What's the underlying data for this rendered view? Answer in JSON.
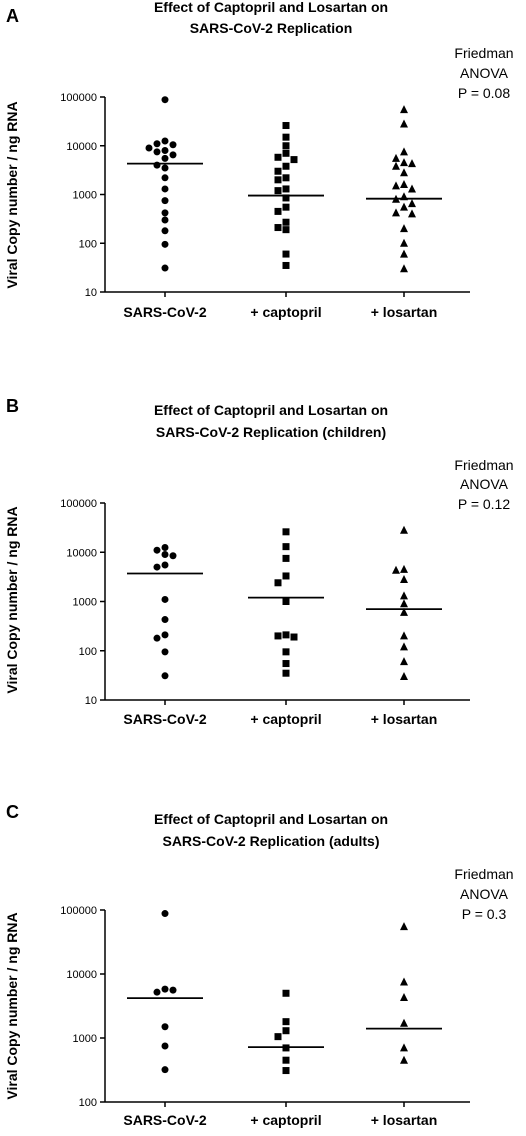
{
  "chart_data": [
    {
      "panel": "A",
      "type": "scatter",
      "title_lines": [
        "Effect of Captopril and Losartan on",
        "SARS-CoV-2 Replication"
      ],
      "stat_lines": [
        "Friedman",
        "ANOVA",
        "P = 0.08"
      ],
      "ylabel": "Viral Copy number / ng RNA",
      "yscale": "log",
      "ylim": [
        10,
        100000
      ],
      "yticks": [
        10,
        100,
        1000,
        10000,
        100000
      ],
      "ytick_labels": [
        "10",
        "100",
        "1000",
        "10000",
        "100000"
      ],
      "categories": [
        "SARS-CoV-2",
        "+ captopril",
        "+ losartan"
      ],
      "series": [
        {
          "markers": "circle",
          "median": 4300,
          "values": [
            88000,
            12500,
            11000,
            10500,
            9000,
            8000,
            7500,
            6500,
            5500,
            4000,
            3500,
            2200,
            1300,
            750,
            420,
            300,
            180,
            95,
            31
          ]
        },
        {
          "markers": "square",
          "median": 950,
          "values": [
            26000,
            15000,
            10000,
            7000,
            5800,
            5200,
            3800,
            3000,
            2200,
            2000,
            1300,
            1200,
            850,
            550,
            450,
            270,
            210,
            190,
            60,
            35
          ]
        },
        {
          "markers": "triangle",
          "median": 820,
          "values": [
            55000,
            28000,
            7500,
            5500,
            4500,
            4300,
            3800,
            2800,
            1600,
            1500,
            1300,
            900,
            800,
            650,
            550,
            420,
            400,
            200,
            100,
            60,
            30
          ]
        }
      ]
    },
    {
      "panel": "B",
      "type": "scatter",
      "title_lines": [
        "Effect of Captopril and Losartan on",
        "SARS-CoV-2 Replication (children)"
      ],
      "stat_lines": [
        "Friedman",
        "ANOVA",
        "P = 0.12"
      ],
      "ylabel": "Viral Copy number / ng RNA",
      "yscale": "log",
      "ylim": [
        10,
        100000
      ],
      "yticks": [
        10,
        100,
        1000,
        10000,
        100000
      ],
      "ytick_labels": [
        "10",
        "100",
        "1000",
        "10000",
        "100000"
      ],
      "categories": [
        "SARS-CoV-2",
        "+ captopril",
        "+ losartan"
      ],
      "series": [
        {
          "markers": "circle",
          "median": 3700,
          "values": [
            12500,
            11000,
            9000,
            8500,
            5500,
            5000,
            1100,
            430,
            210,
            180,
            95,
            31
          ]
        },
        {
          "markers": "square",
          "median": 1200,
          "values": [
            26000,
            13000,
            7500,
            3300,
            2400,
            1000,
            210,
            200,
            190,
            95,
            55,
            35
          ]
        },
        {
          "markers": "triangle",
          "median": 700,
          "values": [
            28000,
            4500,
            4300,
            2800,
            1300,
            900,
            600,
            200,
            120,
            60,
            30
          ]
        }
      ]
    },
    {
      "panel": "C",
      "type": "scatter",
      "title_lines": [
        "Effect of Captopril and Losartan on",
        "SARS-CoV-2 Replication (adults)"
      ],
      "stat_lines": [
        "Friedman",
        "ANOVA",
        "P = 0.3"
      ],
      "ylabel": "Viral Copy number / ng RNA",
      "yscale": "log",
      "ylim": [
        100,
        100000
      ],
      "yticks": [
        100,
        1000,
        10000,
        100000
      ],
      "ytick_labels": [
        "100",
        "1000",
        "10000",
        "100000"
      ],
      "categories": [
        "SARS-CoV-2",
        "+ captopril",
        "+ losartan"
      ],
      "series": [
        {
          "markers": "circle",
          "median": 4200,
          "values": [
            88000,
            5800,
            5200,
            5600,
            1500,
            750,
            320
          ]
        },
        {
          "markers": "square",
          "median": 720,
          "values": [
            5000,
            1800,
            1300,
            1050,
            700,
            450,
            310
          ]
        },
        {
          "markers": "triangle",
          "median": 1400,
          "values": [
            55000,
            7500,
            4300,
            1700,
            700,
            450
          ]
        }
      ]
    }
  ]
}
